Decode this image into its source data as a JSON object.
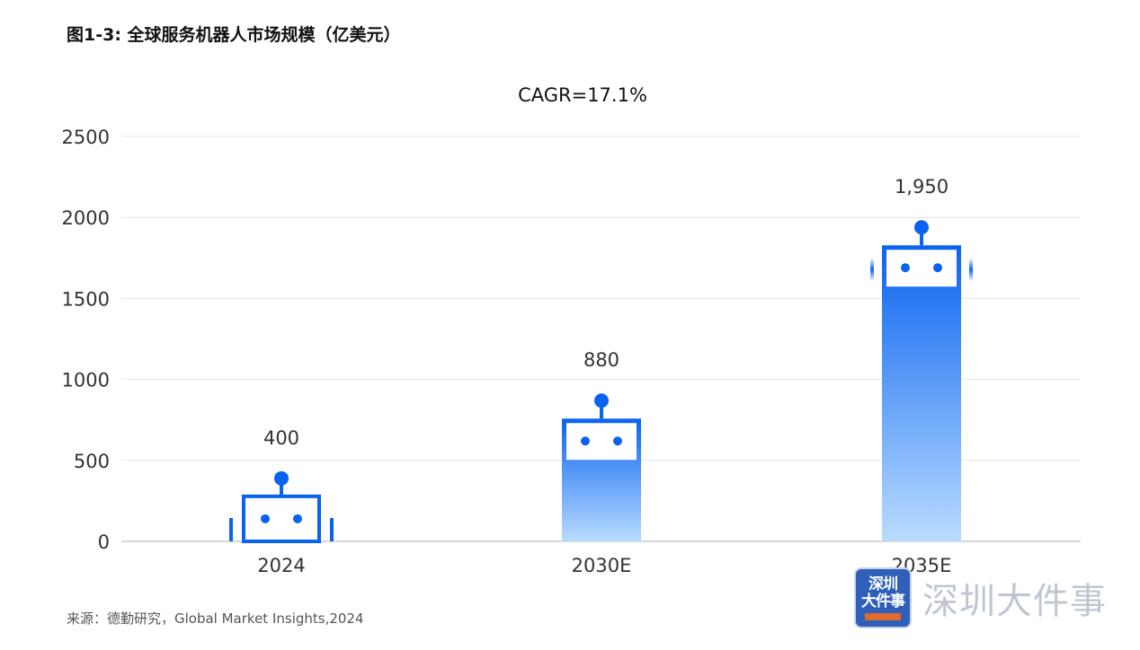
{
  "title": "图1-3: 全球服务机器人市场规模（亿美元）",
  "source": "来源：德勤研究，Global Market Insights,2024",
  "watermark": {
    "logo_line1": "深圳",
    "logo_line2": "大件事",
    "text": "深圳大件事"
  },
  "colors": {
    "bar_top": "#0a63f0",
    "bar_bottom": "#b9dcff",
    "robot_outline": "#0a63f0",
    "grid": "#e6e6e6",
    "axis": "#cccccc"
  },
  "chart_data": {
    "type": "bar",
    "annotation": "CAGR=17.1%",
    "categories": [
      "2024",
      "2030E",
      "2035E"
    ],
    "values": [
      400,
      880,
      1950
    ],
    "value_labels": [
      "400",
      "880",
      "1,950"
    ],
    "yticks": [
      "0",
      "500",
      "1000",
      "1500",
      "2000",
      "2500"
    ],
    "ylim": [
      0,
      2500
    ],
    "grid": true,
    "legend": "none"
  }
}
